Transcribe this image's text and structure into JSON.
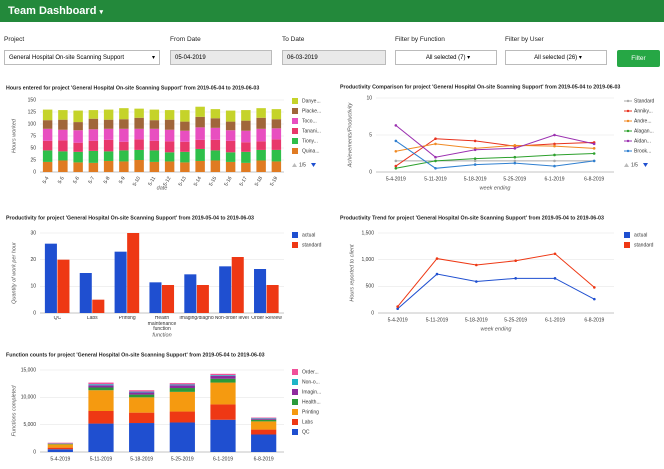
{
  "header": {
    "title": "Team Dashboard"
  },
  "filters": {
    "project": {
      "label": "Project",
      "value": "General Hospital On-site Scanning Support"
    },
    "from_date": {
      "label": "From Date",
      "value": "05-04-2019"
    },
    "to_date": {
      "label": "To Date",
      "value": "06-03-2019"
    },
    "function": {
      "label": "Filter by Function",
      "value": "All selected (7)"
    },
    "user": {
      "label": "Filter by User",
      "value": "All selected (26)"
    },
    "button": "Filter"
  },
  "chart_data": [
    {
      "type": "bar",
      "stacked": true,
      "title": "Hours entered for project 'General Hospital On-site Scanning Support' from 2019-05-04 to 2019-06-03",
      "y_label": "Hours worked",
      "x_label": "date",
      "legend_page": "1/5",
      "categories": [
        "5-4",
        "5-5",
        "5-6",
        "5-7",
        "5-8",
        "5-9",
        "5-10",
        "5-11",
        "5-12",
        "5-13",
        "5-14",
        "5-15",
        "5-16",
        "5-17",
        "5-18",
        "5-19"
      ],
      "series": [
        {
          "name": "Quina...",
          "color": "#e07b22",
          "values": [
            21,
            24,
            20,
            19,
            23,
            22,
            25,
            21,
            22,
            20,
            23,
            24,
            21,
            19,
            24,
            22
          ]
        },
        {
          "name": "Tiony...",
          "color": "#2fbf4a",
          "values": [
            24,
            19,
            22,
            25,
            20,
            23,
            21,
            24,
            19,
            22,
            25,
            21,
            20,
            23,
            22,
            24
          ]
        },
        {
          "name": "Tanani...",
          "color": "#e8386a",
          "values": [
            20,
            23,
            19,
            21,
            24,
            18,
            22,
            20,
            23,
            21,
            19,
            22,
            24,
            20,
            18,
            22
          ]
        },
        {
          "name": "Toco...",
          "color": "#e84fc0",
          "values": [
            25,
            22,
            26,
            24,
            23,
            27,
            22,
            25,
            24,
            23,
            26,
            25,
            22,
            24,
            26,
            23
          ]
        },
        {
          "name": "Placke...",
          "color": "#a0663a",
          "values": [
            18,
            21,
            17,
            22,
            19,
            20,
            23,
            18,
            21,
            19,
            22,
            20,
            18,
            21,
            23,
            19
          ]
        },
        {
          "name": "Danye...",
          "color": "#c5d32a",
          "values": [
            22,
            20,
            24,
            18,
            21,
            23,
            19,
            22,
            20,
            24,
            21,
            19,
            23,
            22,
            20,
            21
          ]
        }
      ],
      "ylim": [
        0,
        150
      ],
      "yticks": [
        0,
        25,
        50,
        75,
        100,
        125,
        150
      ],
      "grid": true
    },
    {
      "type": "line",
      "title": "Productivity Comparison for project 'General Hospital On-site Scanning Support' from 2019-05-04 to 2019-06-03",
      "y_label": "Achievements/Productivity",
      "x_label": "week ending",
      "legend_page": "1/5",
      "categories": [
        "5-4-2019",
        "5-11-2019",
        "5-18-2019",
        "5-25-2019",
        "6-1-2019",
        "6-8-2019"
      ],
      "series": [
        {
          "name": "Standard",
          "color": "#aaaaaa",
          "values": [
            1.5,
            1.5,
            1.5,
            1.5,
            1.5,
            1.5
          ]
        },
        {
          "name": "Anniky...",
          "color": "#e8321e",
          "values": [
            0.8,
            4.5,
            4.2,
            3.5,
            3.8,
            4
          ]
        },
        {
          "name": "Andre...",
          "color": "#f08a24",
          "values": [
            2.8,
            3.8,
            3.2,
            3.6,
            3.5,
            3.2
          ]
        },
        {
          "name": "Alagan...",
          "color": "#2ca02c",
          "values": [
            0.5,
            1.5,
            1.8,
            2,
            2.3,
            2.5
          ]
        },
        {
          "name": "Aidan...",
          "color": "#9b30b0",
          "values": [
            6.3,
            2,
            3,
            3.2,
            5,
            3.8
          ]
        },
        {
          "name": "Brook...",
          "color": "#2f7fd0",
          "values": [
            4.2,
            0.5,
            1,
            1.2,
            0.8,
            1.5
          ]
        }
      ],
      "ylim": [
        0,
        10
      ],
      "yticks": [
        0,
        5,
        10
      ],
      "grid": true
    },
    {
      "type": "bar",
      "stacked": false,
      "title": "Productivity for project 'General Hospital On-site Scanning Support' from 2019-05-04 to 2019-06-03",
      "y_label": "Quantity of work per hour",
      "x_label": "function",
      "categories": [
        "QC",
        "Labs",
        "Printing",
        "Health maintenance function",
        "Imaging/diagnostics",
        "Non-order level",
        "Order Review"
      ],
      "series": [
        {
          "name": "actual",
          "color": "#1f4fd0",
          "values": [
            26,
            15,
            23,
            11.5,
            14.5,
            17.5,
            16.5
          ]
        },
        {
          "name": "standard",
          "color": "#ee3814",
          "values": [
            20,
            5,
            30,
            10.5,
            10.5,
            21,
            10.5
          ]
        }
      ],
      "ylim": [
        0,
        30
      ],
      "yticks": [
        0,
        10,
        20,
        30
      ],
      "grid": true
    },
    {
      "type": "line",
      "title": "Productivity Trend for project 'General Hospital On-site Scanning Support' from 2019-05-04 to 2019-06-03",
      "y_label": "Hours reported to client",
      "x_label": "week ending",
      "categories": [
        "5-4-2019",
        "5-11-2019",
        "5-18-2019",
        "5-25-2019",
        "6-1-2019",
        "6-8-2019"
      ],
      "series": [
        {
          "name": "actual",
          "color": "#1f4fd0",
          "values": [
            80,
            730,
            590,
            650,
            650,
            260
          ]
        },
        {
          "name": "standard",
          "color": "#ee3814",
          "values": [
            120,
            1020,
            900,
            980,
            1110,
            480
          ]
        }
      ],
      "ylim": [
        0,
        1500
      ],
      "yticks": [
        0,
        500,
        {
          "value": 1000,
          "label": "1,000"
        },
        {
          "value": 1500,
          "label": "1,500"
        }
      ],
      "grid": true
    },
    {
      "type": "bar",
      "stacked": true,
      "title": "Function counts for project 'General Hospital On-site Scanning Support' from 2019-05-04 to 2019-06-03",
      "y_label": "Functions completed",
      "categories": [
        "5-4-2019",
        "5-11-2019",
        "5-18-2019",
        "5-25-2019",
        "6-1-2019",
        "6-8-2019"
      ],
      "series": [
        {
          "name": "QC",
          "color": "#1f4fd0",
          "values": [
            500,
            5200,
            5300,
            5400,
            5900,
            3200
          ]
        },
        {
          "name": "Labs",
          "color": "#ee3814",
          "values": [
            300,
            2300,
            1900,
            2000,
            2800,
            900
          ]
        },
        {
          "name": "Printing",
          "color": "#f59a10",
          "values": [
            600,
            3800,
            2800,
            3600,
            4000,
            1500
          ]
        },
        {
          "name": "Health...",
          "color": "#2a9a3a",
          "values": [
            100,
            500,
            500,
            700,
            700,
            300
          ]
        },
        {
          "name": "Imagin...",
          "color": "#8e2a9e",
          "values": [
            50,
            400,
            400,
            500,
            500,
            200
          ]
        },
        {
          "name": "Non-o...",
          "color": "#1fb5c8",
          "values": [
            50,
            200,
            150,
            150,
            150,
            100
          ]
        },
        {
          "name": "Order...",
          "color": "#f0509a",
          "values": [
            100,
            300,
            250,
            250,
            250,
            100
          ]
        }
      ],
      "ylim": [
        0,
        15000
      ],
      "yticks": [
        0,
        {
          "value": 5000,
          "label": "5,000"
        },
        {
          "value": 10000,
          "label": "10,000"
        },
        {
          "value": 15000,
          "label": "15,000"
        }
      ],
      "grid": true
    }
  ]
}
